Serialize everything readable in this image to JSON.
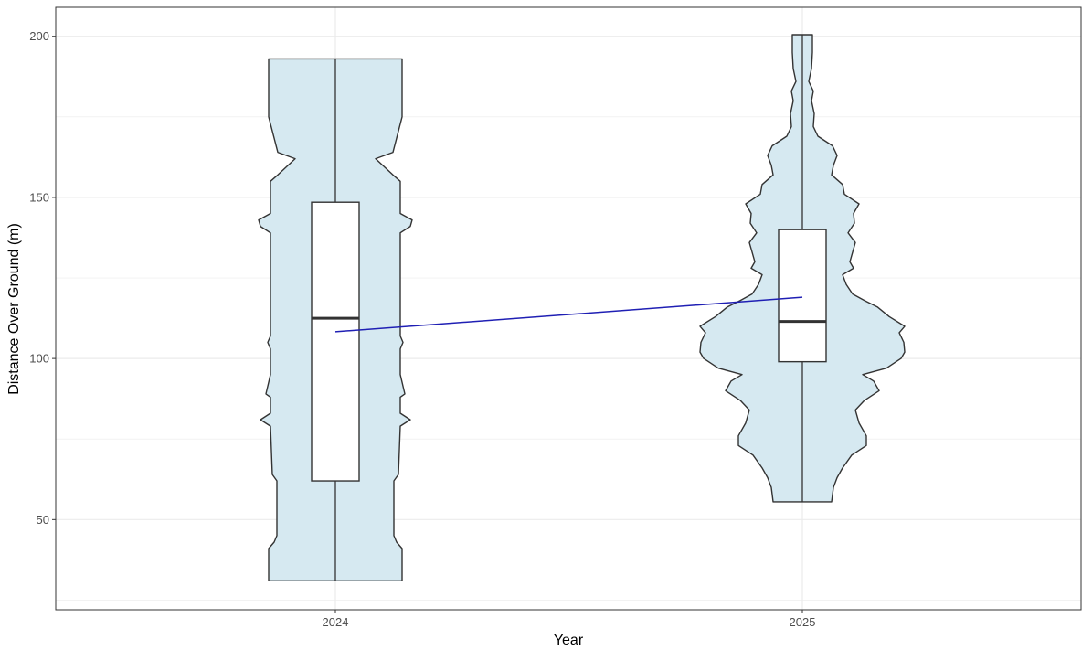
{
  "chart_data": {
    "type": "violin",
    "xlabel": "Year",
    "ylabel": "Distance Over Ground (m)",
    "categories": [
      "2024",
      "2025"
    ],
    "ylim": [
      22,
      209
    ],
    "y_ticks": [
      50,
      100,
      150,
      200
    ],
    "grid": true,
    "colors": {
      "violin_fill": "#d6e9f1",
      "outline": "#333333",
      "trend_line": "#1f1fb4",
      "grid": "#ebebeb"
    },
    "series": [
      {
        "category": "2024",
        "min": 31,
        "max": 193,
        "box": {
          "q1": 62,
          "median": 112.5,
          "q3": 148.5
        },
        "mean": 108.3,
        "density": [
          [
            31,
            0.73
          ],
          [
            41,
            0.73
          ],
          [
            43,
            0.67
          ],
          [
            45,
            0.64
          ],
          [
            62,
            0.64
          ],
          [
            64,
            0.69
          ],
          [
            79,
            0.71
          ],
          [
            81,
            0.82
          ],
          [
            83,
            0.71
          ],
          [
            88,
            0.71
          ],
          [
            89,
            0.76
          ],
          [
            95,
            0.71
          ],
          [
            103,
            0.71
          ],
          [
            105,
            0.74
          ],
          [
            107,
            0.71
          ],
          [
            123,
            0.71
          ],
          [
            139,
            0.71
          ],
          [
            141,
            0.82
          ],
          [
            143,
            0.84
          ],
          [
            145,
            0.71
          ],
          [
            155,
            0.71
          ],
          [
            157,
            0.63
          ],
          [
            162,
            0.44
          ],
          [
            164,
            0.63
          ],
          [
            175,
            0.73
          ],
          [
            193,
            0.73
          ]
        ]
      },
      {
        "category": "2025",
        "min": 55.5,
        "max": 200.5,
        "box": {
          "q1": 99,
          "median": 111.5,
          "q3": 140
        },
        "mean": 119,
        "density": [
          [
            55.5,
            0.32
          ],
          [
            60,
            0.34
          ],
          [
            63,
            0.38
          ],
          [
            66,
            0.44
          ],
          [
            70,
            0.54
          ],
          [
            73,
            0.7
          ],
          [
            76,
            0.7
          ],
          [
            80,
            0.62
          ],
          [
            84,
            0.58
          ],
          [
            87,
            0.68
          ],
          [
            90,
            0.84
          ],
          [
            93,
            0.78
          ],
          [
            95,
            0.66
          ],
          [
            97,
            0.92
          ],
          [
            100,
            1.08
          ],
          [
            102,
            1.12
          ],
          [
            105,
            1.11
          ],
          [
            108,
            1.06
          ],
          [
            110,
            1.12
          ],
          [
            113,
            0.95
          ],
          [
            116,
            0.82
          ],
          [
            118,
            0.68
          ],
          [
            120,
            0.55
          ],
          [
            123,
            0.48
          ],
          [
            126,
            0.44
          ],
          [
            128,
            0.56
          ],
          [
            130,
            0.52
          ],
          [
            133,
            0.55
          ],
          [
            136,
            0.58
          ],
          [
            139,
            0.5
          ],
          [
            142,
            0.57
          ],
          [
            145,
            0.56
          ],
          [
            148,
            0.62
          ],
          [
            151,
            0.46
          ],
          [
            154,
            0.44
          ],
          [
            157,
            0.32
          ],
          [
            160,
            0.34
          ],
          [
            163,
            0.38
          ],
          [
            166,
            0.33
          ],
          [
            169,
            0.17
          ],
          [
            172,
            0.12
          ],
          [
            176,
            0.13
          ],
          [
            180,
            0.1
          ],
          [
            183,
            0.12
          ],
          [
            186,
            0.07
          ],
          [
            190,
            0.1
          ],
          [
            195,
            0.11
          ],
          [
            200.5,
            0.11
          ]
        ]
      }
    ]
  }
}
